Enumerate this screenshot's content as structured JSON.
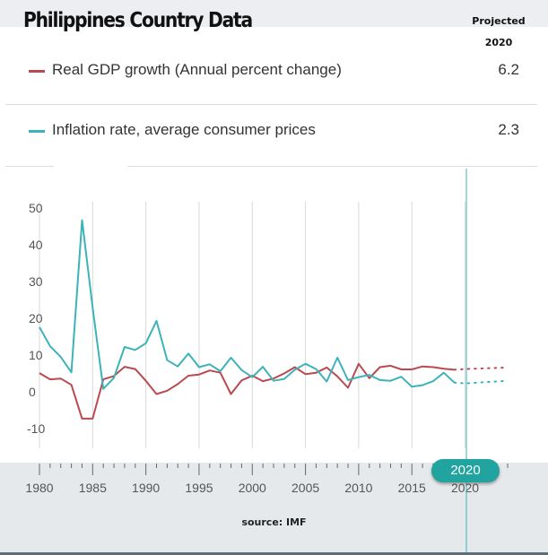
{
  "header": {
    "title": "Philippines Country Data",
    "projected_label": "Projected",
    "projected_year": "2020"
  },
  "legend": [
    {
      "label": "Real GDP growth (Annual percent change)",
      "value": "6.2",
      "color": "#b94a4f"
    },
    {
      "label": "Inflation rate, average consumer prices",
      "value": "2.3",
      "color": "#3cb3b9"
    }
  ],
  "source": "source: IMF",
  "selected_year": "2020",
  "chart_data": {
    "type": "line",
    "x": [
      1980,
      1981,
      1982,
      1983,
      1984,
      1985,
      1986,
      1987,
      1988,
      1989,
      1990,
      1991,
      1992,
      1993,
      1994,
      1995,
      1996,
      1997,
      1998,
      1999,
      2000,
      2001,
      2002,
      2003,
      2004,
      2005,
      2006,
      2007,
      2008,
      2009,
      2010,
      2011,
      2012,
      2013,
      2014,
      2015,
      2016,
      2017,
      2018,
      2019
    ],
    "series": [
      {
        "name": "Real GDP growth (Annual percent change)",
        "color": "#b94a4f",
        "values": [
          5.1,
          3.4,
          3.6,
          1.9,
          -7.3,
          -7.3,
          3.4,
          4.3,
          6.8,
          6.2,
          3.0,
          -0.6,
          0.3,
          2.1,
          4.4,
          4.7,
          5.8,
          5.2,
          -0.6,
          3.1,
          4.4,
          2.9,
          3.6,
          5.0,
          6.7,
          4.8,
          5.2,
          6.6,
          4.2,
          1.1,
          7.6,
          3.7,
          6.7,
          7.1,
          6.1,
          6.1,
          6.9,
          6.7,
          6.3,
          6.0
        ],
        "projection": {
          "x": [
            2020,
            2024
          ],
          "values": [
            6.2,
            6.6
          ]
        }
      },
      {
        "name": "Inflation rate, average consumer prices",
        "color": "#3cb3b9",
        "values": [
          17.6,
          12.4,
          9.5,
          5.3,
          46.7,
          22.9,
          0.8,
          3.8,
          12.2,
          11.4,
          13.2,
          19.3,
          8.6,
          6.9,
          10.4,
          6.7,
          7.5,
          5.6,
          9.3,
          5.9,
          4.0,
          6.8,
          3.0,
          3.5,
          6.0,
          7.6,
          6.2,
          2.8,
          9.3,
          3.2,
          4.0,
          4.6,
          3.2,
          3.0,
          4.1,
          1.4,
          1.8,
          2.9,
          5.2,
          2.5
        ],
        "projection": {
          "x": [
            2020,
            2024
          ],
          "values": [
            2.3,
            3.0
          ]
        }
      }
    ],
    "xticks": [
      1980,
      1985,
      1990,
      1995,
      2000,
      2005,
      2010,
      2015,
      2020
    ],
    "yticks": [
      -10,
      0,
      10,
      20,
      30,
      40,
      50
    ],
    "xlim": [
      1980,
      2024
    ],
    "ylim": [
      -10,
      50
    ],
    "grid": true,
    "title": "",
    "xlabel": "",
    "ylabel": ""
  }
}
